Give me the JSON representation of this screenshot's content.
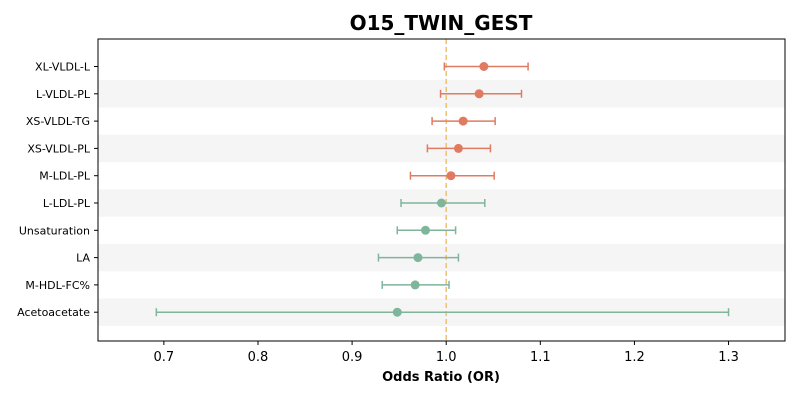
{
  "chart_data": {
    "type": "forest",
    "title": "O15_TWIN_GEST",
    "xlabel": "Odds Ratio (OR)",
    "ylabel": "",
    "xlim": [
      0.63,
      1.36
    ],
    "xticks": [
      0.7,
      0.8,
      0.9,
      1.0,
      1.1,
      1.2,
      1.3
    ],
    "xtick_labels": [
      "0.7",
      "0.8",
      "0.9",
      "1.0",
      "1.1",
      "1.2",
      "1.3"
    ],
    "reference_line": 1.0,
    "grid": false,
    "alternating_row_shading": true,
    "colors": {
      "positive": "#e07b61",
      "negative": "#7fb59b",
      "reference": "#f0c070",
      "row_shade": "#f5f5f5"
    },
    "rows": [
      {
        "label": "XL-VLDL-L",
        "or": 1.04,
        "ci_low": 0.998,
        "ci_high": 1.087,
        "direction": "positive"
      },
      {
        "label": "L-VLDL-PL",
        "or": 1.035,
        "ci_low": 0.994,
        "ci_high": 1.08,
        "direction": "positive"
      },
      {
        "label": "XS-VLDL-TG",
        "or": 1.018,
        "ci_low": 0.985,
        "ci_high": 1.052,
        "direction": "positive"
      },
      {
        "label": "XS-VLDL-PL",
        "or": 1.013,
        "ci_low": 0.98,
        "ci_high": 1.047,
        "direction": "positive"
      },
      {
        "label": "M-LDL-PL",
        "or": 1.005,
        "ci_low": 0.962,
        "ci_high": 1.051,
        "direction": "positive"
      },
      {
        "label": "L-LDL-PL",
        "or": 0.995,
        "ci_low": 0.952,
        "ci_high": 1.041,
        "direction": "negative"
      },
      {
        "label": "Unsaturation",
        "or": 0.978,
        "ci_low": 0.948,
        "ci_high": 1.01,
        "direction": "negative"
      },
      {
        "label": "LA",
        "or": 0.97,
        "ci_low": 0.928,
        "ci_high": 1.013,
        "direction": "negative"
      },
      {
        "label": "M-HDL-FC%",
        "or": 0.967,
        "ci_low": 0.932,
        "ci_high": 1.003,
        "direction": "negative"
      },
      {
        "label": "Acetoacetate",
        "or": 0.948,
        "ci_low": 0.692,
        "ci_high": 1.3,
        "direction": "negative"
      }
    ]
  }
}
